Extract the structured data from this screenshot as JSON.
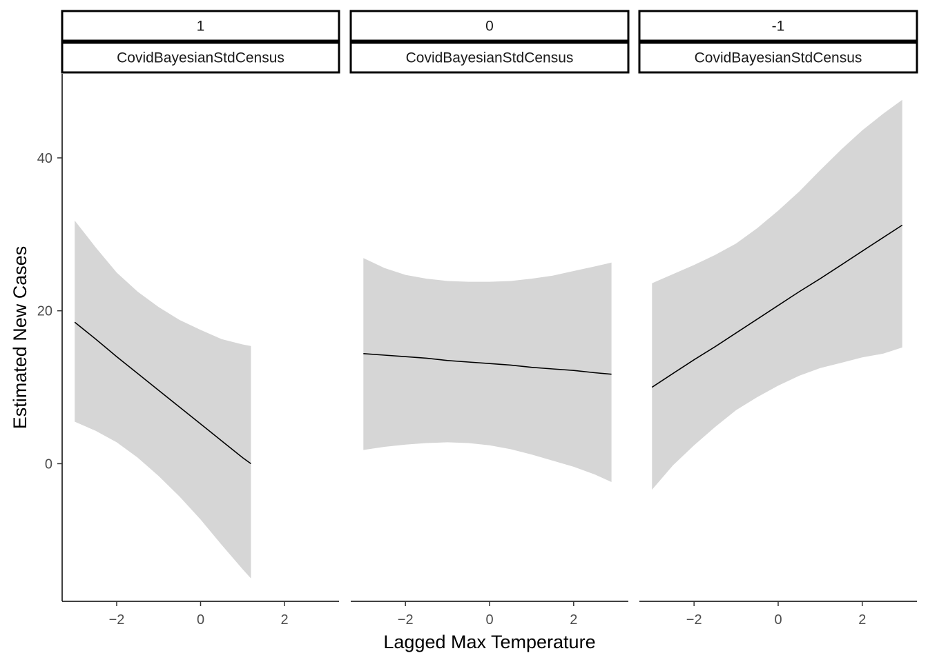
{
  "chart_data": {
    "type": "line",
    "xlabel": "Lagged Max Temperature",
    "ylabel": "Estimated New Cases",
    "xlim": [
      -3.3,
      3.3
    ],
    "ylim": [
      -18,
      51
    ],
    "x_ticks": [
      -2,
      0,
      2
    ],
    "y_ticks": [
      0,
      20,
      40
    ],
    "grid": false,
    "legend": "none",
    "line_color": "#000000",
    "ribbon_color": "#d6d6d6",
    "panels": [
      {
        "strip_top": "1",
        "strip_bottom": "CovidBayesianStdCensus",
        "x": [
          -3.0,
          -2.5,
          -2.0,
          -1.5,
          -1.0,
          -0.5,
          0.0,
          0.5,
          1.0,
          1.2
        ],
        "y": [
          18.5,
          16.3,
          14.0,
          11.8,
          9.6,
          7.4,
          5.2,
          3.0,
          0.8,
          0.0
        ],
        "lower": [
          5.5,
          4.3,
          2.8,
          0.8,
          -1.6,
          -4.3,
          -7.3,
          -10.6,
          -13.8,
          -15.0
        ],
        "upper": [
          31.8,
          28.3,
          25.0,
          22.5,
          20.5,
          18.8,
          17.5,
          16.3,
          15.6,
          15.4
        ]
      },
      {
        "strip_top": "0",
        "strip_bottom": "CovidBayesianStdCensus",
        "x": [
          -3.0,
          -2.5,
          -2.0,
          -1.5,
          -1.0,
          -0.5,
          0.0,
          0.5,
          1.0,
          1.5,
          2.0,
          2.5,
          2.9
        ],
        "y": [
          14.4,
          14.2,
          14.0,
          13.8,
          13.5,
          13.3,
          13.1,
          12.9,
          12.6,
          12.4,
          12.2,
          11.9,
          11.7
        ],
        "lower": [
          1.8,
          2.2,
          2.5,
          2.7,
          2.8,
          2.7,
          2.4,
          1.9,
          1.2,
          0.4,
          -0.4,
          -1.4,
          -2.4
        ],
        "upper": [
          26.9,
          25.6,
          24.7,
          24.2,
          23.9,
          23.8,
          23.8,
          23.9,
          24.2,
          24.6,
          25.2,
          25.8,
          26.3
        ]
      },
      {
        "strip_top": "-1",
        "strip_bottom": "CovidBayesianStdCensus",
        "x": [
          -3.0,
          -2.5,
          -2.0,
          -1.5,
          -1.0,
          -0.5,
          0.0,
          0.5,
          1.0,
          1.5,
          2.0,
          2.5,
          2.95
        ],
        "y": [
          10.0,
          11.8,
          13.6,
          15.3,
          17.1,
          18.9,
          20.7,
          22.5,
          24.2,
          26.0,
          27.8,
          29.6,
          31.2
        ],
        "lower": [
          -3.4,
          -0.2,
          2.4,
          4.8,
          7.0,
          8.7,
          10.2,
          11.5,
          12.5,
          13.2,
          13.9,
          14.4,
          15.2
        ],
        "upper": [
          23.6,
          24.8,
          26.0,
          27.3,
          28.8,
          30.8,
          33.1,
          35.6,
          38.4,
          41.1,
          43.6,
          45.8,
          47.6
        ]
      }
    ]
  }
}
